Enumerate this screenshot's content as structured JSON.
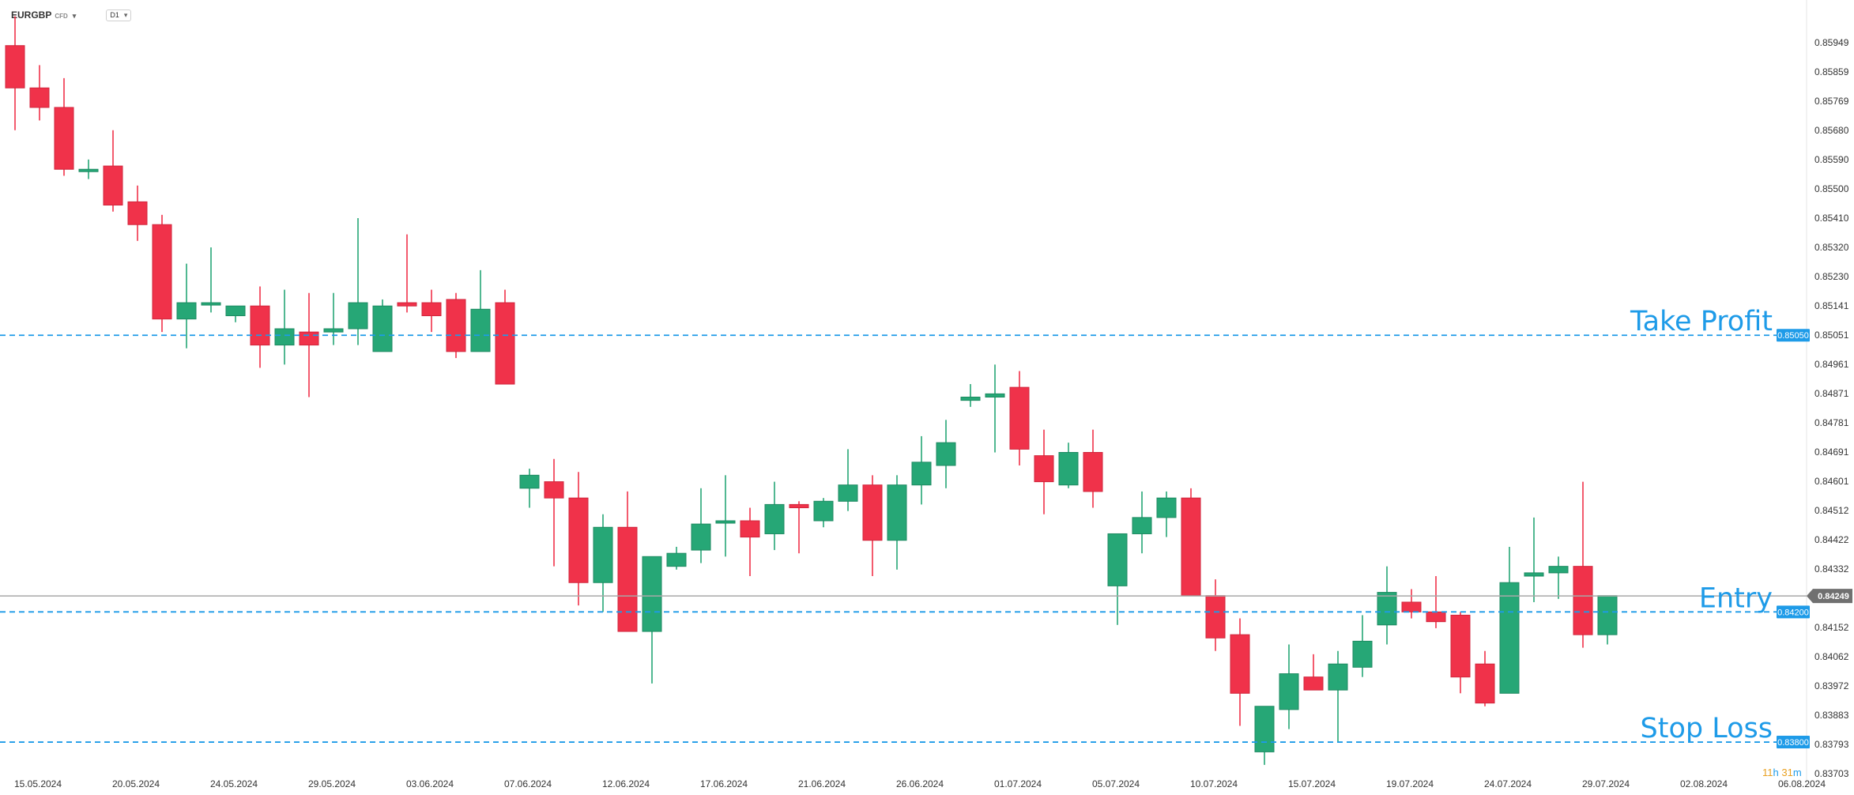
{
  "header": {
    "symbol": "EURGBP",
    "symbol_type": "CFD",
    "timeframe": "D1",
    "symbol_dropdown_icon": "caret-down-icon",
    "timeframe_dropdown_icon": "caret-down-icon"
  },
  "colors": {
    "bull": "#26a776",
    "bear": "#f0324a",
    "level_line": "#1e9be8",
    "label_bg": "#1e9be8",
    "price_line": "#a8a8a8",
    "price_tag": "#707070",
    "countdown_hours": "#e8a020",
    "countdown_units": "#1e9be8",
    "axis_text": "#333333"
  },
  "countdown": {
    "hours": "11",
    "h_unit": "h",
    "minutes": "31",
    "m_unit": "m"
  },
  "chart_data": {
    "type": "candlestick",
    "instrument": "EURGBP",
    "timeframe": "D1",
    "y_axis_ticks": [
      "0.85949",
      "0.85859",
      "0.85769",
      "0.85680",
      "0.85590",
      "0.85500",
      "0.85410",
      "0.85320",
      "0.85230",
      "0.85141",
      "0.85051",
      "0.84961",
      "0.84871",
      "0.84781",
      "0.84691",
      "0.84601",
      "0.84512",
      "0.84422",
      "0.84332",
      "0.84242",
      "0.84152",
      "0.84062",
      "0.83972",
      "0.83883",
      "0.83793",
      "0.83703"
    ],
    "x_axis_ticks": [
      "15.05.2024",
      "20.05.2024",
      "24.05.2024",
      "29.05.2024",
      "03.06.2024",
      "07.06.2024",
      "12.06.2024",
      "17.06.2024",
      "21.06.2024",
      "26.06.2024",
      "01.07.2024",
      "05.07.2024",
      "10.07.2024",
      "15.07.2024",
      "19.07.2024",
      "24.07.2024",
      "29.07.2024",
      "02.08.2024",
      "06.08.2024"
    ],
    "candles": [
      {
        "o": 0.8594,
        "h": 0.8603,
        "l": 0.8568,
        "c": 0.8581
      },
      {
        "o": 0.8581,
        "h": 0.8588,
        "l": 0.8571,
        "c": 0.8575
      },
      {
        "o": 0.8575,
        "h": 0.8584,
        "l": 0.8554,
        "c": 0.8556
      },
      {
        "o": 0.8556,
        "h": 0.8559,
        "l": 0.8553,
        "c": 0.8556
      },
      {
        "o": 0.8557,
        "h": 0.8568,
        "l": 0.8543,
        "c": 0.8545
      },
      {
        "o": 0.8546,
        "h": 0.8551,
        "l": 0.8534,
        "c": 0.8539
      },
      {
        "o": 0.8539,
        "h": 0.8542,
        "l": 0.8506,
        "c": 0.851
      },
      {
        "o": 0.851,
        "h": 0.8527,
        "l": 0.8501,
        "c": 0.8515
      },
      {
        "o": 0.8515,
        "h": 0.8532,
        "l": 0.8512,
        "c": 0.8515
      },
      {
        "o": 0.8511,
        "h": 0.8514,
        "l": 0.8509,
        "c": 0.8514
      },
      {
        "o": 0.8514,
        "h": 0.852,
        "l": 0.8495,
        "c": 0.8502
      },
      {
        "o": 0.8502,
        "h": 0.8519,
        "l": 0.8496,
        "c": 0.8507
      },
      {
        "o": 0.8506,
        "h": 0.8518,
        "l": 0.8486,
        "c": 0.8502
      },
      {
        "o": 0.8506,
        "h": 0.8518,
        "l": 0.8502,
        "c": 0.8507
      },
      {
        "o": 0.8507,
        "h": 0.8541,
        "l": 0.8502,
        "c": 0.8515
      },
      {
        "o": 0.85,
        "h": 0.8516,
        "l": 0.85,
        "c": 0.8514
      },
      {
        "o": 0.8515,
        "h": 0.8536,
        "l": 0.8512,
        "c": 0.8514
      },
      {
        "o": 0.8515,
        "h": 0.8519,
        "l": 0.8506,
        "c": 0.8511
      },
      {
        "o": 0.8516,
        "h": 0.8518,
        "l": 0.8498,
        "c": 0.85
      },
      {
        "o": 0.85,
        "h": 0.8525,
        "l": 0.85,
        "c": 0.8513
      },
      {
        "o": 0.8515,
        "h": 0.8519,
        "l": 0.849,
        "c": 0.849
      },
      {
        "o": 0.8458,
        "h": 0.8464,
        "l": 0.8452,
        "c": 0.8462
      },
      {
        "o": 0.846,
        "h": 0.8467,
        "l": 0.8434,
        "c": 0.8455
      },
      {
        "o": 0.8455,
        "h": 0.8463,
        "l": 0.8422,
        "c": 0.8429
      },
      {
        "o": 0.8429,
        "h": 0.845,
        "l": 0.842,
        "c": 0.8446
      },
      {
        "o": 0.8446,
        "h": 0.8457,
        "l": 0.8416,
        "c": 0.8414
      },
      {
        "o": 0.8414,
        "h": 0.8436,
        "l": 0.8398,
        "c": 0.8437
      },
      {
        "o": 0.8434,
        "h": 0.844,
        "l": 0.8433,
        "c": 0.8438
      },
      {
        "o": 0.8439,
        "h": 0.8458,
        "l": 0.8435,
        "c": 0.8447
      },
      {
        "o": 0.8448,
        "h": 0.8462,
        "l": 0.8437,
        "c": 0.8448
      },
      {
        "o": 0.8448,
        "h": 0.8452,
        "l": 0.8431,
        "c": 0.8443
      },
      {
        "o": 0.8444,
        "h": 0.846,
        "l": 0.8439,
        "c": 0.8453
      },
      {
        "o": 0.8453,
        "h": 0.8454,
        "l": 0.8438,
        "c": 0.8452
      },
      {
        "o": 0.8448,
        "h": 0.8455,
        "l": 0.8446,
        "c": 0.8454
      },
      {
        "o": 0.8454,
        "h": 0.847,
        "l": 0.8451,
        "c": 0.8459
      },
      {
        "o": 0.8459,
        "h": 0.8462,
        "l": 0.8431,
        "c": 0.8442
      },
      {
        "o": 0.8442,
        "h": 0.8462,
        "l": 0.8433,
        "c": 0.8459
      },
      {
        "o": 0.8459,
        "h": 0.8474,
        "l": 0.8453,
        "c": 0.8466
      },
      {
        "o": 0.8465,
        "h": 0.8479,
        "l": 0.8458,
        "c": 0.8472
      },
      {
        "o": 0.8485,
        "h": 0.849,
        "l": 0.8483,
        "c": 0.8486
      },
      {
        "o": 0.8486,
        "h": 0.8496,
        "l": 0.8469,
        "c": 0.8487
      },
      {
        "o": 0.8489,
        "h": 0.8494,
        "l": 0.8465,
        "c": 0.847
      },
      {
        "o": 0.8468,
        "h": 0.8476,
        "l": 0.845,
        "c": 0.846
      },
      {
        "o": 0.8459,
        "h": 0.8472,
        "l": 0.8458,
        "c": 0.8469
      },
      {
        "o": 0.8469,
        "h": 0.8476,
        "l": 0.8452,
        "c": 0.8457
      },
      {
        "o": 0.8428,
        "h": 0.8444,
        "l": 0.8416,
        "c": 0.8444
      },
      {
        "o": 0.8444,
        "h": 0.8457,
        "l": 0.8438,
        "c": 0.8449
      },
      {
        "o": 0.8449,
        "h": 0.8457,
        "l": 0.8443,
        "c": 0.8455
      },
      {
        "o": 0.8455,
        "h": 0.8458,
        "l": 0.8425,
        "c": 0.8425
      },
      {
        "o": 0.8425,
        "h": 0.843,
        "l": 0.8408,
        "c": 0.8412
      },
      {
        "o": 0.8413,
        "h": 0.8418,
        "l": 0.8385,
        "c": 0.8395
      },
      {
        "o": 0.8377,
        "h": 0.8391,
        "l": 0.8373,
        "c": 0.8391
      },
      {
        "o": 0.839,
        "h": 0.841,
        "l": 0.8384,
        "c": 0.8401
      },
      {
        "o": 0.84,
        "h": 0.8407,
        "l": 0.8396,
        "c": 0.8396
      },
      {
        "o": 0.8396,
        "h": 0.8408,
        "l": 0.838,
        "c": 0.8404
      },
      {
        "o": 0.8403,
        "h": 0.8419,
        "l": 0.84,
        "c": 0.8411
      },
      {
        "o": 0.8416,
        "h": 0.8434,
        "l": 0.841,
        "c": 0.8426
      },
      {
        "o": 0.8423,
        "h": 0.8427,
        "l": 0.8418,
        "c": 0.842
      },
      {
        "o": 0.842,
        "h": 0.8431,
        "l": 0.8415,
        "c": 0.8417
      },
      {
        "o": 0.8419,
        "h": 0.842,
        "l": 0.8395,
        "c": 0.84
      },
      {
        "o": 0.8404,
        "h": 0.8408,
        "l": 0.8391,
        "c": 0.8392
      },
      {
        "o": 0.8395,
        "h": 0.844,
        "l": 0.8395,
        "c": 0.8429
      },
      {
        "o": 0.8431,
        "h": 0.8449,
        "l": 0.8423,
        "c": 0.8432
      },
      {
        "o": 0.8432,
        "h": 0.8437,
        "l": 0.8424,
        "c": 0.8434
      },
      {
        "o": 0.8434,
        "h": 0.846,
        "l": 0.8409,
        "c": 0.8413
      },
      {
        "o": 0.8413,
        "h": 0.8425,
        "l": 0.841,
        "c": 0.8425
      }
    ],
    "levels": [
      {
        "name": "Take Profit",
        "price": 0.8505,
        "label": "0.85050"
      },
      {
        "name": "Entry",
        "price": 0.842,
        "label": "0.84200"
      },
      {
        "name": "Stop Loss",
        "price": 0.838,
        "label": "0.83800"
      }
    ],
    "current_price": {
      "price": 0.84249,
      "label": "0.84249"
    }
  }
}
